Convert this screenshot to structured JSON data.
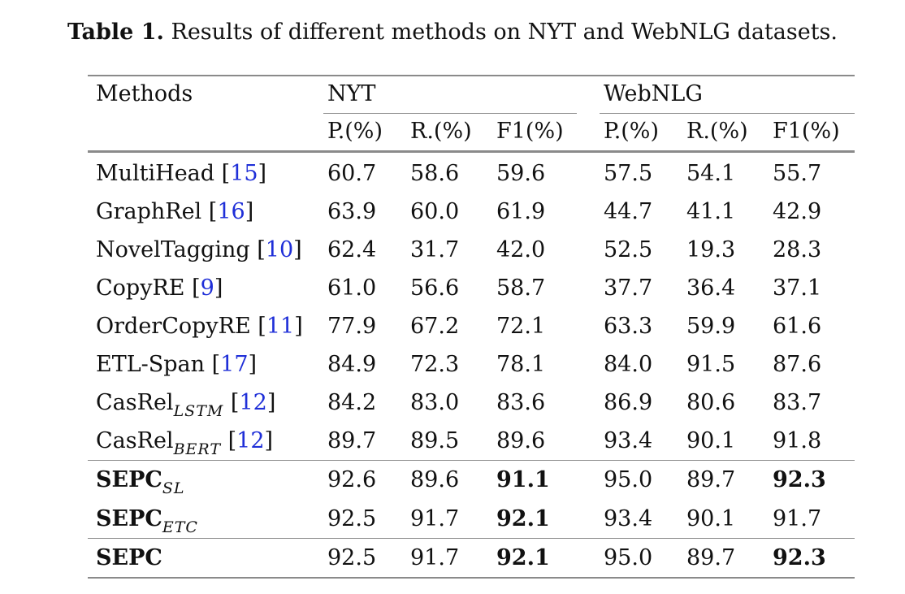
{
  "caption": {
    "label": "Table 1.",
    "text": "Results of different methods on NYT and WebNLG datasets."
  },
  "header": {
    "methods": "Methods",
    "groups": [
      "NYT",
      "WebNLG"
    ],
    "metrics": [
      "P.(%)",
      "R.(%)",
      "F1(%)",
      "P.(%)",
      "R.(%)",
      "F1(%)"
    ]
  },
  "rows": [
    {
      "name": "MultiHead",
      "sub": "",
      "ref": "15",
      "bold_name": false,
      "values": [
        "60.7",
        "58.6",
        "59.6",
        "57.5",
        "54.1",
        "55.7"
      ],
      "bold": []
    },
    {
      "name": "GraphRel",
      "sub": "",
      "ref": "16",
      "bold_name": false,
      "values": [
        "63.9",
        "60.0",
        "61.9",
        "44.7",
        "41.1",
        "42.9"
      ],
      "bold": []
    },
    {
      "name": "NovelTagging",
      "sub": "",
      "ref": "10",
      "bold_name": false,
      "values": [
        "62.4",
        "31.7",
        "42.0",
        "52.5",
        "19.3",
        "28.3"
      ],
      "bold": []
    },
    {
      "name": "CopyRE",
      "sub": "",
      "ref": "9",
      "bold_name": false,
      "values": [
        "61.0",
        "56.6",
        "58.7",
        "37.7",
        "36.4",
        "37.1"
      ],
      "bold": []
    },
    {
      "name": "OrderCopyRE",
      "sub": "",
      "ref": "11",
      "bold_name": false,
      "values": [
        "77.9",
        "67.2",
        "72.1",
        "63.3",
        "59.9",
        "61.6"
      ],
      "bold": []
    },
    {
      "name": "ETL-Span",
      "sub": "",
      "ref": "17",
      "bold_name": false,
      "values": [
        "84.9",
        "72.3",
        "78.1",
        "84.0",
        "91.5",
        "87.6"
      ],
      "bold": []
    },
    {
      "name": "CasRel",
      "sub": "LSTM",
      "ref": "12",
      "bold_name": false,
      "values": [
        "84.2",
        "83.0",
        "83.6",
        "86.9",
        "80.6",
        "83.7"
      ],
      "bold": []
    },
    {
      "name": "CasRel",
      "sub": "BERT",
      "ref": "12",
      "bold_name": false,
      "values": [
        "89.7",
        "89.5",
        "89.6",
        "93.4",
        "90.1",
        "91.8"
      ],
      "bold": []
    },
    {
      "name": "SEPC",
      "sub": "SL",
      "ref": "",
      "bold_name": true,
      "values": [
        "92.6",
        "89.6",
        "91.1",
        "95.0",
        "89.7",
        "92.3"
      ],
      "bold": [
        2,
        5
      ]
    },
    {
      "name": "SEPC",
      "sub": "ETC",
      "ref": "",
      "bold_name": true,
      "values": [
        "92.5",
        "91.7",
        "92.1",
        "93.4",
        "90.1",
        "91.7"
      ],
      "bold": [
        2
      ]
    },
    {
      "name": "SEPC",
      "sub": "",
      "ref": "",
      "bold_name": true,
      "values": [
        "92.5",
        "91.7",
        "92.1",
        "95.0",
        "89.7",
        "92.3"
      ],
      "bold": [
        2,
        5
      ]
    }
  ]
}
